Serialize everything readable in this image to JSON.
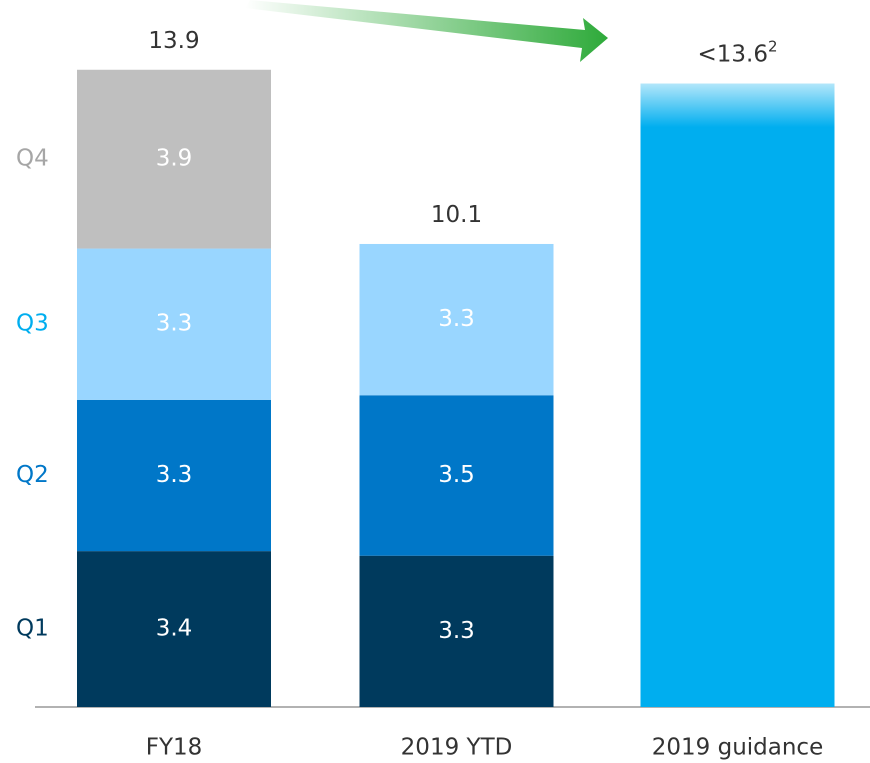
{
  "chart_data": {
    "type": "stacked_bar",
    "categories": [
      "FY18",
      "2019 YTD",
      "2019 guidance"
    ],
    "series": [
      {
        "name": "Q1",
        "color": "#003a5d",
        "values": [
          3.4,
          3.3,
          null
        ]
      },
      {
        "name": "Q2",
        "color": "#0077c8",
        "values": [
          3.3,
          3.5,
          null
        ]
      },
      {
        "name": "Q3",
        "color": "#99d6ff",
        "values": [
          3.3,
          3.3,
          null
        ]
      },
      {
        "name": "Q4",
        "color": "#bfbfbf",
        "values": [
          3.9,
          null,
          null
        ]
      },
      {
        "color": "#00aeef",
        "values": [
          null,
          null,
          13.6
        ]
      }
    ],
    "totals": {
      "values": [
        13.9,
        10.1,
        13.6
      ],
      "value_labels": [
        "13.9",
        "10.1",
        "<13.6"
      ],
      "footnotes": [
        null,
        null,
        "2"
      ]
    },
    "legend_colors": [
      "#003a5d",
      "#0077c8",
      "#00aeef",
      "#a6a6a6"
    ],
    "ylim": [
      0,
      15.4
    ]
  }
}
